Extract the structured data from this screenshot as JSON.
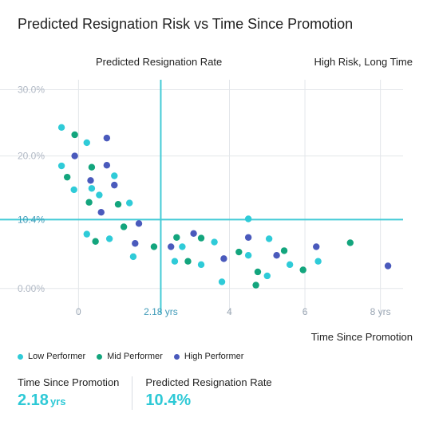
{
  "title": "Predicted Resignation Risk vs Time Since Promotion",
  "colors": {
    "low": "#2fcbd8",
    "mid": "#13a57d",
    "high": "#4a5abc",
    "crosshair": "#43cbd6",
    "grid": "#e3e6ea"
  },
  "chart_data": {
    "type": "scatter",
    "ylabel": "Predicted Resignation Rate",
    "xlabel": "Time Since Promotion",
    "quadrant_label": "High Risk, Long Time",
    "xlim": [
      -0.6,
      8.6
    ],
    "ylim": [
      -0.04,
      0.315
    ],
    "x_ticks": [
      {
        "value": 0,
        "label": "0"
      },
      {
        "value": 4,
        "label": "4"
      },
      {
        "value": 6,
        "label": "6"
      },
      {
        "value": 8,
        "label": "8 yrs"
      }
    ],
    "y_ticks": [
      {
        "value": 0.3,
        "label": "30.0%"
      },
      {
        "value": 0.2,
        "label": "20.0%"
      },
      {
        "value": 0.0,
        "label": "0.00%"
      }
    ],
    "crosshair": {
      "x": 2.18,
      "x_label": "2.18 yrs",
      "y": 0.104,
      "y_label": "10.4%"
    },
    "grid": true,
    "legend_position": "bottom-left",
    "series": [
      {
        "name": "Low Performer",
        "color": "#2fcbd8",
        "points": [
          [
            -0.45,
            0.243
          ],
          [
            -0.45,
            0.185
          ],
          [
            -0.12,
            0.149
          ],
          [
            0.22,
            0.22
          ],
          [
            0.35,
            0.151
          ],
          [
            0.55,
            0.141
          ],
          [
            0.82,
            0.075
          ],
          [
            0.95,
            0.17
          ],
          [
            1.35,
            0.129
          ],
          [
            1.45,
            0.048
          ],
          [
            2.55,
            0.041
          ],
          [
            2.75,
            0.063
          ],
          [
            3.25,
            0.036
          ],
          [
            3.6,
            0.07
          ],
          [
            3.8,
            0.01
          ],
          [
            4.5,
            0.105
          ],
          [
            4.5,
            0.05
          ],
          [
            5.05,
            0.075
          ],
          [
            5.0,
            0.019
          ],
          [
            5.6,
            0.036
          ],
          [
            6.35,
            0.041
          ],
          [
            0.22,
            0.082
          ]
        ]
      },
      {
        "name": "Mid Performer",
        "color": "#13a57d",
        "points": [
          [
            -0.3,
            0.168
          ],
          [
            -0.1,
            0.232
          ],
          [
            0.28,
            0.13
          ],
          [
            0.35,
            0.183
          ],
          [
            0.45,
            0.071
          ],
          [
            1.05,
            0.127
          ],
          [
            1.2,
            0.093
          ],
          [
            2.0,
            0.063
          ],
          [
            2.6,
            0.077
          ],
          [
            2.9,
            0.041
          ],
          [
            3.25,
            0.076
          ],
          [
            4.25,
            0.055
          ],
          [
            4.75,
            0.025
          ],
          [
            4.7,
            0.005
          ],
          [
            5.45,
            0.057
          ],
          [
            5.95,
            0.028
          ],
          [
            7.2,
            0.069
          ]
        ]
      },
      {
        "name": "High Performer",
        "color": "#4a5abc",
        "points": [
          [
            -0.1,
            0.2
          ],
          [
            0.32,
            0.163
          ],
          [
            0.6,
            0.115
          ],
          [
            0.75,
            0.227
          ],
          [
            0.75,
            0.186
          ],
          [
            0.95,
            0.156
          ],
          [
            1.5,
            0.068
          ],
          [
            1.6,
            0.098
          ],
          [
            2.45,
            0.063
          ],
          [
            3.05,
            0.083
          ],
          [
            3.85,
            0.045
          ],
          [
            4.5,
            0.077
          ],
          [
            5.25,
            0.05
          ],
          [
            6.3,
            0.063
          ],
          [
            8.2,
            0.034
          ]
        ]
      }
    ]
  },
  "stats": {
    "time_label": "Time Since Promotion",
    "time_value": "2.18",
    "time_unit": "yrs",
    "rate_label": "Predicted Resignation Rate",
    "rate_value": "10.4%"
  }
}
